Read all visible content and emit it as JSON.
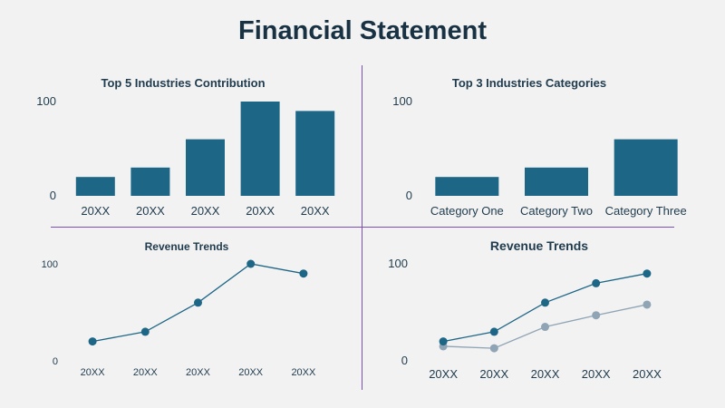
{
  "page": {
    "title": "Financial Statement"
  },
  "colors": {
    "primary": "#1d6686",
    "secondary": "#8fa4b5",
    "divider": "#7b4fb0",
    "background": "#f2f2f2"
  },
  "chart_data": [
    {
      "type": "bar",
      "title": "Top 5 Industries Contribution",
      "categories": [
        "20XX",
        "20XX",
        "20XX",
        "20XX",
        "20XX"
      ],
      "values": [
        20,
        30,
        60,
        100,
        90
      ],
      "ylim": [
        0,
        100
      ],
      "yticks": [
        "0",
        "100"
      ],
      "grid": false
    },
    {
      "type": "bar",
      "title": "Top 3 Industries Categories",
      "categories": [
        "Category One",
        "Category Two",
        "Category Three"
      ],
      "values": [
        20,
        30,
        60
      ],
      "ylim": [
        0,
        100
      ],
      "yticks": [
        "0",
        "100"
      ],
      "grid": false
    },
    {
      "type": "line",
      "title": "Revenue Trends",
      "categories": [
        "20XX",
        "20XX",
        "20XX",
        "20XX",
        "20XX"
      ],
      "values": [
        20,
        30,
        60,
        100,
        90
      ],
      "ylim": [
        0,
        100
      ],
      "yticks": [
        "0",
        "100"
      ],
      "grid": false
    },
    {
      "type": "line",
      "title": "Revenue Trends",
      "categories": [
        "20XX",
        "20XX",
        "20XX",
        "20XX",
        "20XX"
      ],
      "series": [
        {
          "values": [
            20,
            30,
            60,
            80,
            90
          ]
        },
        {
          "values": [
            15,
            13,
            35,
            47,
            58
          ]
        }
      ],
      "ylim": [
        0,
        100
      ],
      "yticks": [
        "0",
        "100"
      ],
      "grid": false
    }
  ]
}
